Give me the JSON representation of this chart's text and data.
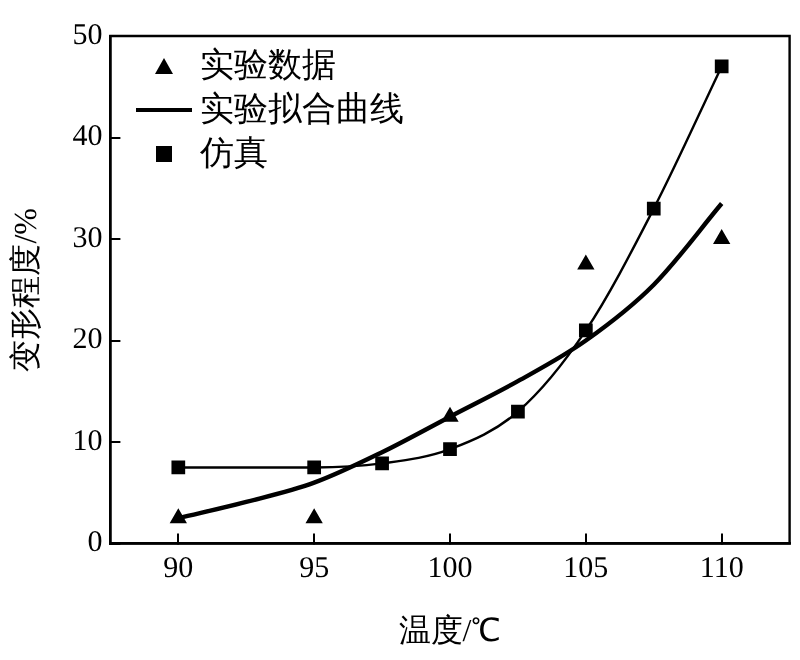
{
  "chart_data": {
    "type": "scatter",
    "xlabel": "温度/℃",
    "ylabel": "变形程度/%",
    "xlim": [
      87.5,
      112.5
    ],
    "xticks": [
      90,
      95,
      100,
      105,
      110
    ],
    "ylim": [
      0,
      50
    ],
    "yticks": [
      0,
      10,
      20,
      30,
      40,
      50
    ],
    "grid": false,
    "legend": "top left",
    "series": [
      {
        "name": "实验数据",
        "type": "scatter",
        "marker": "triangle",
        "color": "#000000",
        "x": [
          90,
          95,
          100,
          105,
          110
        ],
        "values": [
          2.5,
          2.5,
          12.5,
          27.5,
          30
        ]
      },
      {
        "name": "实验拟合曲线",
        "type": "line",
        "marker": "none",
        "color": "#000000",
        "x": [
          90,
          92.5,
          95,
          97.5,
          100,
          102.5,
          105,
          107.5,
          110
        ],
        "values": [
          2.5,
          4.1,
          6,
          9,
          12.5,
          16,
          20,
          25.5,
          33.5
        ]
      },
      {
        "name": "仿真",
        "type": "line",
        "marker": "square",
        "color": "#000000",
        "x": [
          90,
          95,
          97.5,
          100,
          102.5,
          105,
          107.5,
          110
        ],
        "values": [
          7.5,
          7.5,
          7.9,
          9.3,
          13,
          21,
          33,
          47
        ]
      }
    ]
  }
}
